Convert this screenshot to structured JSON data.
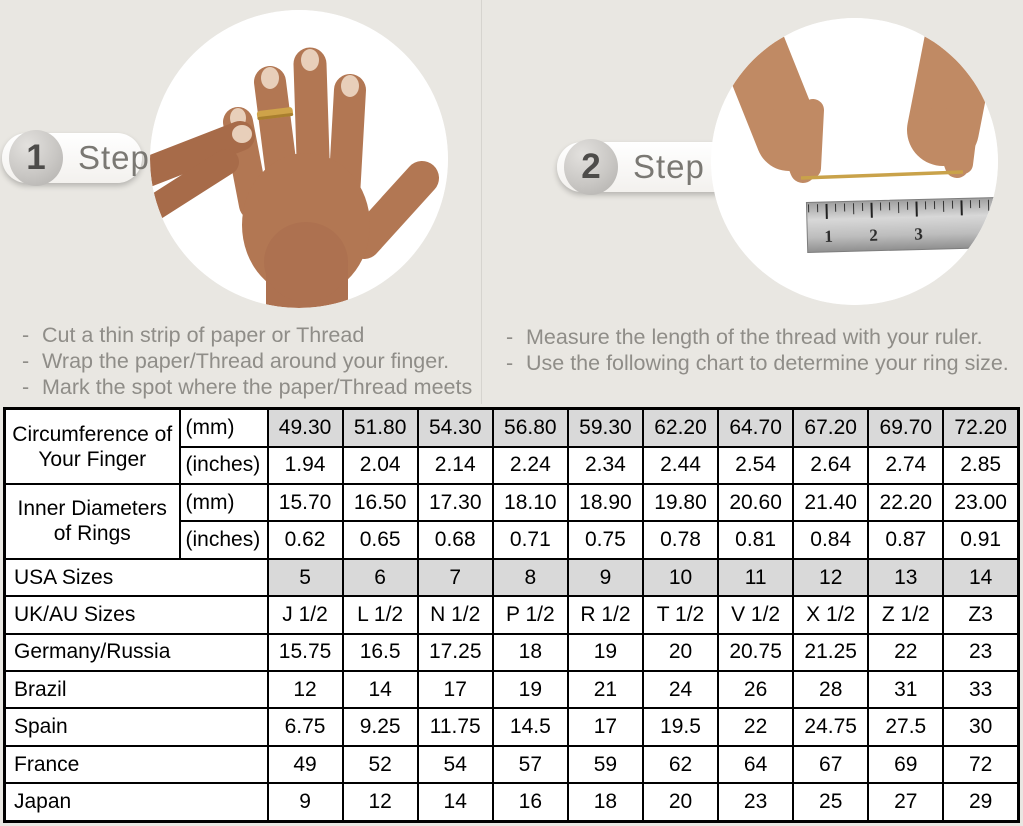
{
  "page": {
    "background_color": "#e9e7e2"
  },
  "steps": [
    {
      "number": "1",
      "label": "Step",
      "photo": "hand-with-ring-photo",
      "instructions": [
        "Cut a thin strip of paper or Thread",
        "Wrap the paper/Thread around your finger.",
        "Mark the spot where the paper/Thread meets"
      ]
    },
    {
      "number": "2",
      "label": "Step",
      "photo": "measuring-thread-with-ruler-photo",
      "instructions": [
        "Measure the length of the thread with your ruler.",
        "Use the following chart to determine your ring size."
      ]
    }
  ],
  "size_chart": {
    "columns": 10,
    "row_groups": [
      {
        "label": "Circumference of Your Finger",
        "rows": [
          {
            "unit": "(mm)",
            "shaded": true,
            "values": [
              "49.30",
              "51.80",
              "54.30",
              "56.80",
              "59.30",
              "62.20",
              "64.70",
              "67.20",
              "69.70",
              "72.20"
            ]
          },
          {
            "unit": "(inches)",
            "shaded": false,
            "values": [
              "1.94",
              "2.04",
              "2.14",
              "2.24",
              "2.34",
              "2.44",
              "2.54",
              "2.64",
              "2.74",
              "2.85"
            ]
          }
        ]
      },
      {
        "label": "Inner Diameters of Rings",
        "rows": [
          {
            "unit": "(mm)",
            "shaded": false,
            "values": [
              "15.70",
              "16.50",
              "17.30",
              "18.10",
              "18.90",
              "19.80",
              "20.60",
              "21.40",
              "22.20",
              "23.00"
            ]
          },
          {
            "unit": "(inches)",
            "shaded": false,
            "values": [
              "0.62",
              "0.65",
              "0.68",
              "0.71",
              "0.75",
              "0.78",
              "0.81",
              "0.84",
              "0.87",
              "0.91"
            ]
          }
        ]
      }
    ],
    "simple_rows": [
      {
        "label": "USA Sizes",
        "shaded": true,
        "values": [
          "5",
          "6",
          "7",
          "8",
          "9",
          "10",
          "11",
          "12",
          "13",
          "14"
        ]
      },
      {
        "label": "UK/AU Sizes",
        "shaded": false,
        "values": [
          "J 1/2",
          "L 1/2",
          "N 1/2",
          "P 1/2",
          "R 1/2",
          "T 1/2",
          "V 1/2",
          "X 1/2",
          "Z 1/2",
          "Z3"
        ]
      },
      {
        "label": "Germany/Russia",
        "shaded": false,
        "values": [
          "15.75",
          "16.5",
          "17.25",
          "18",
          "19",
          "20",
          "20.75",
          "21.25",
          "22",
          "23"
        ]
      },
      {
        "label": "Brazil",
        "shaded": false,
        "values": [
          "12",
          "14",
          "17",
          "19",
          "21",
          "24",
          "26",
          "28",
          "31",
          "33"
        ]
      },
      {
        "label": "Spain",
        "shaded": false,
        "values": [
          "6.75",
          "9.25",
          "11.75",
          "14.5",
          "17",
          "19.5",
          "22",
          "24.75",
          "27.5",
          "30"
        ]
      },
      {
        "label": "France",
        "shaded": false,
        "values": [
          "49",
          "52",
          "54",
          "57",
          "59",
          "62",
          "64",
          "67",
          "69",
          "72"
        ]
      },
      {
        "label": "Japan",
        "shaded": false,
        "values": [
          "9",
          "12",
          "14",
          "16",
          "18",
          "20",
          "23",
          "25",
          "27",
          "29"
        ]
      }
    ],
    "colors": {
      "shaded_cell": "#d9d9d9",
      "border": "#000000",
      "table_background": "#ffffff"
    }
  }
}
